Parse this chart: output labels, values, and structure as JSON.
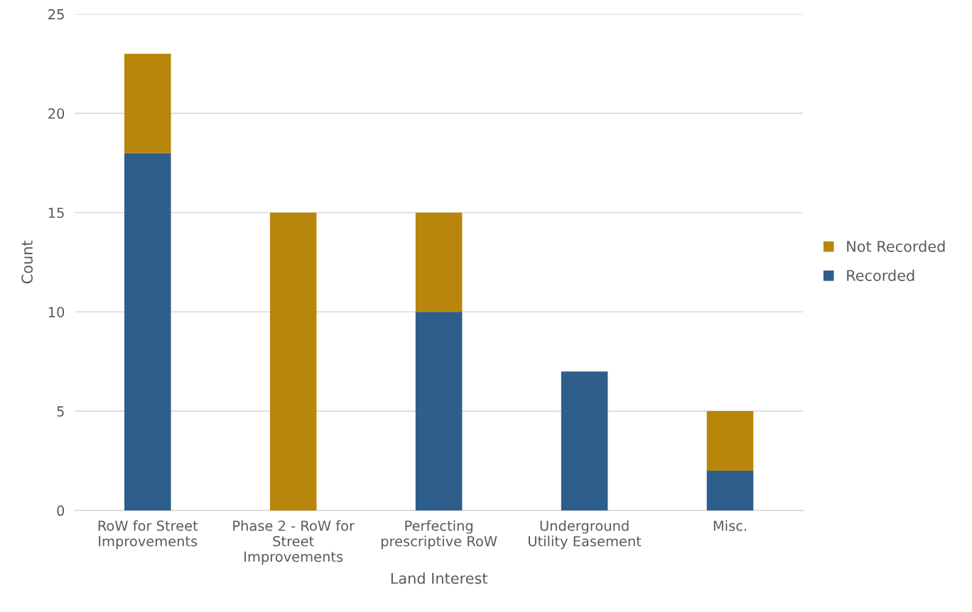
{
  "chart_data": {
    "type": "bar",
    "stacked": true,
    "xlabel": "Land Interest",
    "ylabel": "Count",
    "categories": [
      "RoW for Street\nImprovements",
      "Phase 2 - RoW for\nStreet\nImprovements",
      "Perfecting\nprescriptive RoW",
      "Underground\nUtility Easement",
      "Misc."
    ],
    "series": [
      {
        "name": "Recorded",
        "color": "#2e5e8c",
        "values": [
          18,
          0,
          10,
          7,
          2
        ]
      },
      {
        "name": "Not Recorded",
        "color": "#b8860b",
        "values": [
          5,
          15,
          5,
          0,
          3
        ]
      }
    ],
    "ylim": [
      0,
      25
    ],
    "yticks": [
      0,
      5,
      10,
      15,
      20,
      25
    ],
    "grid": "y",
    "legend": "right"
  }
}
